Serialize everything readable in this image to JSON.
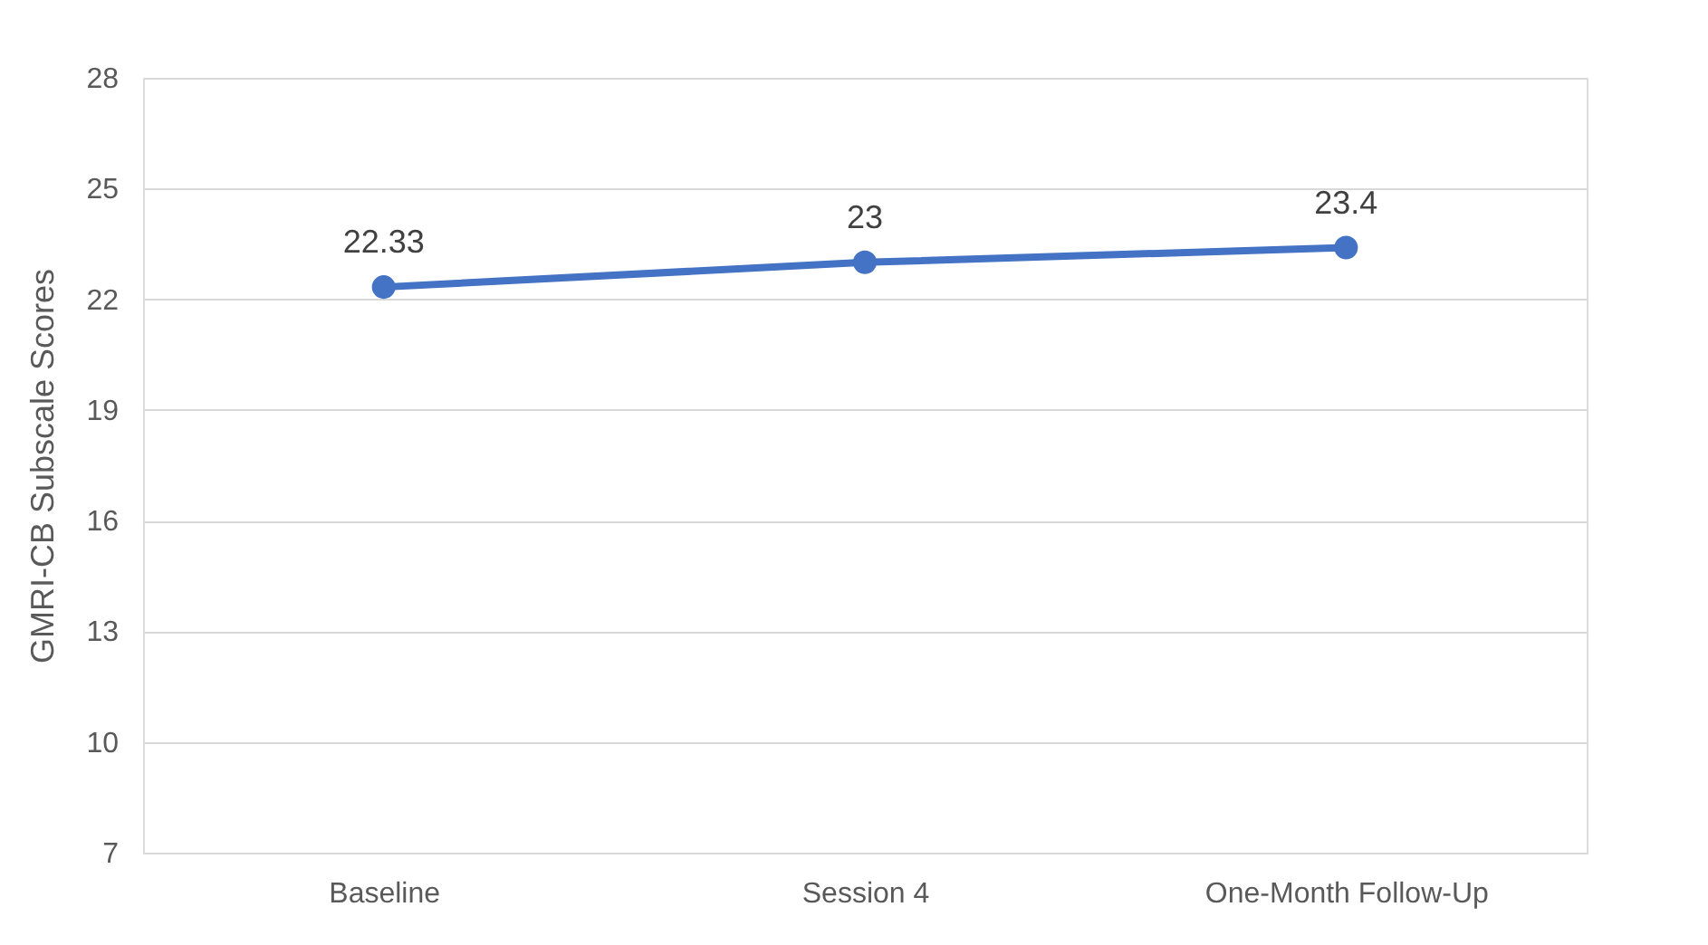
{
  "chart_data": {
    "type": "line",
    "ylabel": "GMRI-CB Subscale Scores",
    "categories": [
      "Baseline",
      "Session 4",
      "One-Month Follow-Up"
    ],
    "series": [
      {
        "color": "#4472c4",
        "values": [
          22.33,
          23,
          23.4
        ]
      }
    ],
    "ylim": [
      7,
      28
    ],
    "yticks": [
      7,
      10,
      13,
      16,
      19,
      22,
      25,
      28
    ],
    "grid": "y",
    "marker": "circle",
    "line_style": "solid",
    "data_labels": true
  }
}
